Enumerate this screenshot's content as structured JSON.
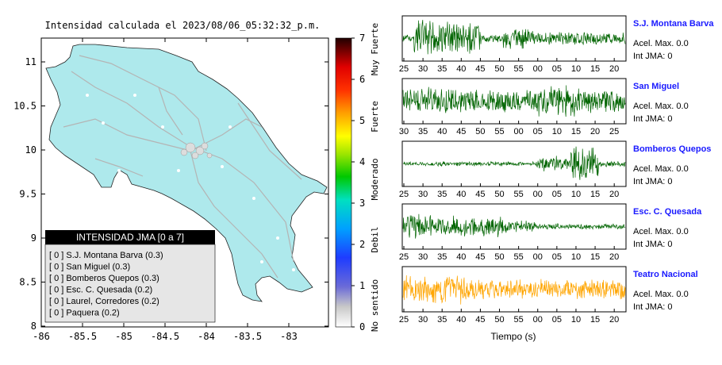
{
  "map": {
    "title": "Intensidad calculada el 2023/08/06_05:32:32_p.m.",
    "lon_ticks": [
      "-86",
      "-85.5",
      "-85",
      "-84.5",
      "-84",
      "-83.5",
      "-83"
    ],
    "lat_ticks": [
      "11",
      "10.5",
      "10",
      "9.5",
      "9",
      "8.5",
      "8"
    ],
    "colors": {
      "land": "#aee9ec",
      "roads": "#b4b4b4",
      "border": "#000000"
    }
  },
  "colorbar": {
    "ticks": [
      "0",
      "1",
      "2",
      "3",
      "4",
      "5",
      "6",
      "7"
    ],
    "labels": [
      "No sentido",
      "Debil",
      "Moderado",
      "Fuerte",
      "Muy Fuerte"
    ]
  },
  "legend": {
    "header": "INTENSIDAD JMA [0 a 7]",
    "rows": [
      "[ 0 ]  S.J. Montana Barva (0.3)",
      "[ 0 ]  San Miguel (0.3)",
      "[ 0 ]  Bomberos Quepos (0.3)",
      "[ 0 ]  Esc. C. Quesada (0.2)",
      "[ 0 ]  Laurel, Corredores (0.2)",
      "[ 0 ]  Paquera (0.2)"
    ]
  },
  "chart_data": [
    {
      "type": "line",
      "title": "S.J. Montana Barva",
      "x_ticks": [
        "25",
        "30",
        "35",
        "40",
        "45",
        "50",
        "55",
        "00",
        "05",
        "10",
        "15",
        "20"
      ],
      "series": [
        {
          "name": "S.J. Montana Barva",
          "color": "#006400"
        }
      ],
      "info": [
        "Acel. Max. 0.0",
        "Int JMA: 0"
      ]
    },
    {
      "type": "line",
      "title": "San Miguel",
      "x_ticks": [
        "30",
        "35",
        "40",
        "45",
        "50",
        "55",
        "00",
        "05",
        "10",
        "15",
        "20",
        "25"
      ],
      "series": [
        {
          "name": "San Miguel",
          "color": "#006400"
        }
      ],
      "info": [
        "Acel. Max. 0.0",
        "Int JMA: 0"
      ]
    },
    {
      "type": "line",
      "title": "Bomberos Quepos",
      "x_ticks": [
        "25",
        "30",
        "35",
        "40",
        "45",
        "50",
        "55",
        "00",
        "05",
        "10",
        "15",
        "20"
      ],
      "series": [
        {
          "name": "Bomberos Quepos",
          "color": "#006400"
        }
      ],
      "info": [
        "Acel. Max. 0.0",
        "Int JMA: 0"
      ]
    },
    {
      "type": "line",
      "title": "Esc. C. Quesada",
      "x_ticks": [
        "25",
        "30",
        "35",
        "40",
        "45",
        "50",
        "55",
        "00",
        "05",
        "10",
        "15",
        "20"
      ],
      "series": [
        {
          "name": "Esc. C. Quesada",
          "color": "#006400"
        }
      ],
      "info": [
        "Acel. Max. 0.0",
        "Int JMA: 0"
      ]
    },
    {
      "type": "line",
      "title": "Teatro Nacional",
      "x_ticks": [
        "25",
        "30",
        "35",
        "40",
        "45",
        "50",
        "55",
        "00",
        "05",
        "10",
        "15",
        "20"
      ],
      "series": [
        {
          "name": "Teatro Nacional",
          "color": "#ffa500"
        }
      ],
      "info": [
        "Acel. Max. 0.0",
        "Int JMA: 0"
      ]
    }
  ],
  "seismo_xlabel": "Tiempo (s)"
}
